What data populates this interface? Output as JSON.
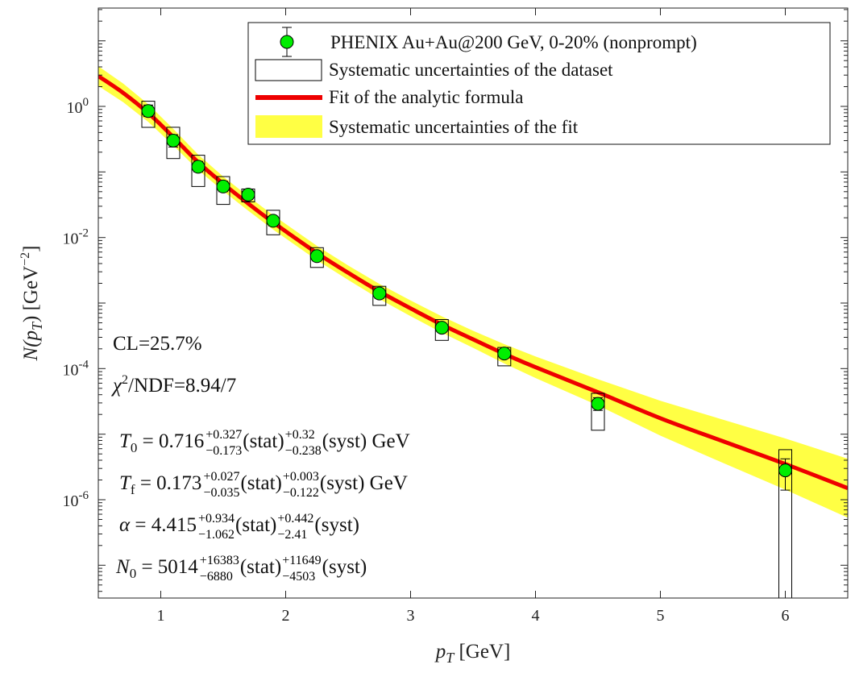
{
  "chart_data": {
    "type": "scatter",
    "yscale": "log",
    "xlim": [
      0.5,
      6.5
    ],
    "ylim_log10": [
      -7.5,
      1.5
    ],
    "xlabel": {
      "main": "p",
      "sub": "T",
      "unit": " [GeV]"
    },
    "ylabel": {
      "pre": "N(p",
      "sub": "T",
      "post": ") [GeV",
      "exp": "−2",
      "end": "]"
    },
    "x_ticks": [
      1,
      2,
      3,
      4,
      5,
      6
    ],
    "y_ticks": [
      {
        "exp": 0,
        "base": "10",
        "sup": "0"
      },
      {
        "exp": -2,
        "base": "10",
        "sup": "-2"
      },
      {
        "exp": -4,
        "base": "10",
        "sup": "-4"
      },
      {
        "exp": -6,
        "base": "10",
        "sup": "-6"
      }
    ],
    "grid": false,
    "legend_position": "top-right",
    "legend": [
      {
        "key": "data",
        "label": "PHENIX Au+Au@200 GeV, 0-20% (nonprompt)"
      },
      {
        "key": "syst_data",
        "label": "Systematic uncertainties of the dataset"
      },
      {
        "key": "fit",
        "label": "Fit of the analytic formula"
      },
      {
        "key": "fit_band",
        "label": "Systematic uncertainties of the fit"
      }
    ],
    "colors": {
      "marker": "#00ee00",
      "fit": "#ee0000",
      "band": "#ffff44",
      "box": "#000000"
    },
    "series": [
      {
        "name": "PHENIX Au+Au@200 GeV, 0-20% (nonprompt)",
        "points": [
          {
            "x": 0.9,
            "y": 0.85,
            "stat_lo": 0.7,
            "stat_hi": 1.05,
            "sys_lo": 0.48,
            "sys_hi": 1.2
          },
          {
            "x": 1.1,
            "y": 0.3,
            "stat_lo": 0.24,
            "stat_hi": 0.37,
            "sys_lo": 0.16,
            "sys_hi": 0.48
          },
          {
            "x": 1.3,
            "y": 0.12,
            "stat_lo": 0.1,
            "stat_hi": 0.145,
            "sys_lo": 0.06,
            "sys_hi": 0.18
          },
          {
            "x": 1.5,
            "y": 0.06,
            "stat_lo": 0.05,
            "stat_hi": 0.072,
            "sys_lo": 0.032,
            "sys_hi": 0.085
          },
          {
            "x": 1.7,
            "y": 0.045,
            "stat_lo": 0.038,
            "stat_hi": 0.052,
            "sys_lo": 0.035,
            "sys_hi": 0.055
          },
          {
            "x": 1.9,
            "y": 0.018,
            "stat_lo": 0.015,
            "stat_hi": 0.021,
            "sys_lo": 0.011,
            "sys_hi": 0.026
          },
          {
            "x": 2.25,
            "y": 0.0052,
            "stat_lo": 0.0044,
            "stat_hi": 0.006,
            "sys_lo": 0.0035,
            "sys_hi": 0.007
          },
          {
            "x": 2.75,
            "y": 0.0014,
            "stat_lo": 0.00118,
            "stat_hi": 0.0016,
            "sys_lo": 0.00092,
            "sys_hi": 0.0018
          },
          {
            "x": 3.25,
            "y": 0.00042,
            "stat_lo": 0.00036,
            "stat_hi": 0.00048,
            "sys_lo": 0.00027,
            "sys_hi": 0.00056
          },
          {
            "x": 3.75,
            "y": 0.00017,
            "stat_lo": 0.000145,
            "stat_hi": 0.000195,
            "sys_lo": 0.00011,
            "sys_hi": 0.00021
          },
          {
            "x": 4.5,
            "y": 2.9e-05,
            "stat_lo": 2.3e-05,
            "stat_hi": 3.6e-05,
            "sys_lo": 1.15e-05,
            "sys_hi": 4.2e-05
          },
          {
            "x": 6.0,
            "y": 2.8e-06,
            "stat_lo": 1.4e-06,
            "stat_hi": 4.2e-06,
            "sys_lo": 3e-08,
            "sys_hi": 5.8e-06
          }
        ]
      },
      {
        "name": "Fit of the analytic formula",
        "curve": [
          {
            "x": 0.5,
            "y": 2.9
          },
          {
            "x": 0.7,
            "y": 1.6
          },
          {
            "x": 0.9,
            "y": 0.79
          },
          {
            "x": 1.1,
            "y": 0.34
          },
          {
            "x": 1.3,
            "y": 0.14
          },
          {
            "x": 1.5,
            "y": 0.066
          },
          {
            "x": 1.7,
            "y": 0.033
          },
          {
            "x": 1.9,
            "y": 0.017
          },
          {
            "x": 2.25,
            "y": 0.0058
          },
          {
            "x": 2.5,
            "y": 0.0029
          },
          {
            "x": 2.75,
            "y": 0.0015
          },
          {
            "x": 3.0,
            "y": 0.00083
          },
          {
            "x": 3.25,
            "y": 0.00047
          },
          {
            "x": 3.5,
            "y": 0.00028
          },
          {
            "x": 3.75,
            "y": 0.000168
          },
          {
            "x": 4.0,
            "y": 0.000105
          },
          {
            "x": 4.5,
            "y": 4.35e-05
          },
          {
            "x": 5.0,
            "y": 1.75e-05
          },
          {
            "x": 5.5,
            "y": 7.8e-06
          },
          {
            "x": 6.0,
            "y": 3.5e-06
          },
          {
            "x": 6.5,
            "y": 1.5e-06
          }
        ],
        "band_width_log10": [
          {
            "x": 0.5,
            "w": 0.15
          },
          {
            "x": 1.5,
            "w": 0.11
          },
          {
            "x": 2.5,
            "w": 0.11
          },
          {
            "x": 3.5,
            "w": 0.13
          },
          {
            "x": 4.5,
            "w": 0.2
          },
          {
            "x": 5.5,
            "w": 0.33
          },
          {
            "x": 6.5,
            "w": 0.45
          }
        ]
      }
    ]
  },
  "annotations": {
    "cl": "CL=25.7%",
    "chi2": {
      "chi": "χ",
      "sup": "2",
      "rest": "/NDF=8.94/7"
    },
    "params": [
      {
        "sym": "T",
        "sub": "0",
        "val": " = 0.716",
        "stat_hi": "+0.327",
        "stat_lo": "−0.173",
        "stat": "(stat)",
        "syst_hi": "+0.32",
        "syst_lo": "−0.238",
        "syst": "(syst)",
        "unit": " GeV"
      },
      {
        "sym": "T",
        "sub": "f",
        "val": " = 0.173",
        "stat_hi": "+0.027",
        "stat_lo": "−0.035",
        "stat": "(stat)",
        "syst_hi": "+0.003",
        "syst_lo": "−0.122",
        "syst": "(syst)",
        "unit": " GeV"
      },
      {
        "sym": "α",
        "sub": "",
        "val": " = 4.415",
        "stat_hi": "+0.934",
        "stat_lo": "−1.062",
        "stat": "(stat)",
        "syst_hi": "+0.442",
        "syst_lo": "−2.41",
        "syst": "(syst)",
        "unit": ""
      },
      {
        "sym": "N",
        "sub": "0",
        "val": " = 5014",
        "stat_hi": "+16383",
        "stat_lo": "−6880",
        "stat": "(stat)",
        "syst_hi": "+11649",
        "syst_lo": "−4503",
        "syst": "(syst)",
        "unit": ""
      }
    ]
  }
}
